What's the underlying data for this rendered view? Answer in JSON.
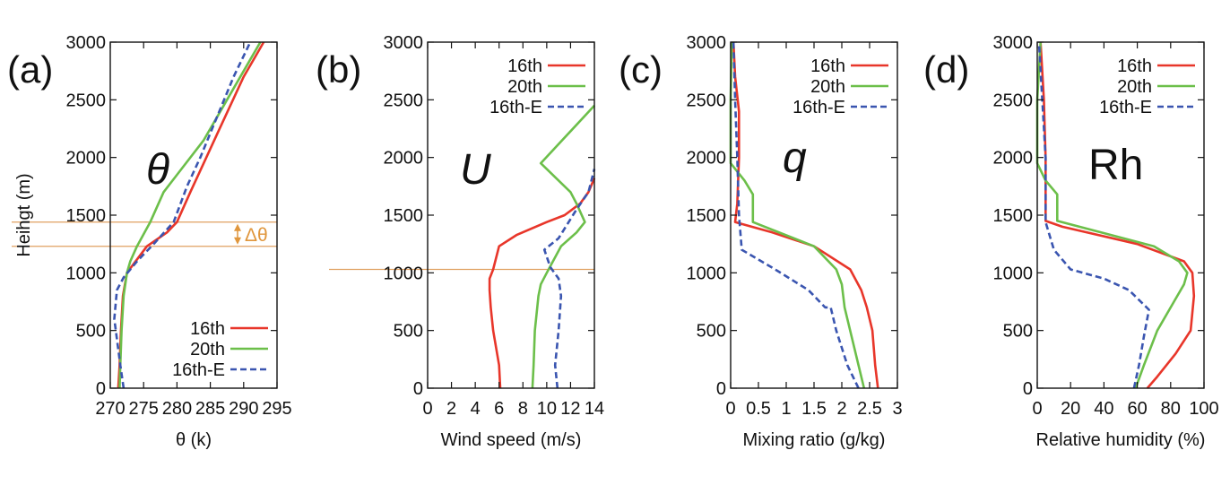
{
  "chart_data": [
    {
      "type": "line",
      "panel_label": "(a)",
      "symbol": "θ",
      "symbol_style": "italic",
      "xlabel": "θ (k)",
      "ylabel": "Heihgt (m)",
      "xlim": [
        270,
        295
      ],
      "ylim": [
        0,
        3000
      ],
      "xticks": [
        "270",
        "275",
        "280",
        "285",
        "290",
        "295"
      ],
      "yticks": [
        "0",
        "500",
        "1000",
        "1500",
        "2000",
        "2500",
        "3000"
      ],
      "legend_position": "bottom-right",
      "hlines": [
        1440,
        1230
      ],
      "annotation": "Δθ",
      "series": [
        {
          "name": "16th",
          "color": "#e8362a",
          "dash": "solid",
          "x": [
            271.2,
            271.4,
            271.6,
            271.9,
            272.5,
            275.5,
            278.5,
            280.0,
            282.0,
            284.0,
            286.0,
            288.0,
            290.0,
            292.0,
            293.0
          ],
          "y": [
            0,
            200,
            500,
            800,
            1000,
            1230,
            1350,
            1440,
            1700,
            1950,
            2200,
            2450,
            2700,
            2900,
            3000
          ]
        },
        {
          "name": "20th",
          "color": "#6cbf4a",
          "dash": "solid",
          "x": [
            271.4,
            271.5,
            271.7,
            272.0,
            272.5,
            273.0,
            274.0,
            276.0,
            278.0,
            280.0,
            284.0,
            287.0,
            290.0,
            292.5
          ],
          "y": [
            0,
            200,
            500,
            800,
            1000,
            1100,
            1230,
            1440,
            1700,
            1850,
            2150,
            2450,
            2750,
            3000
          ]
        },
        {
          "name": "16th-E",
          "color": "#3a55b0",
          "dash": "dashed",
          "x": [
            272.0,
            271.5,
            270.6,
            271.0,
            272.0,
            274.0,
            276.5,
            279.5,
            281.5,
            283.5,
            286.0,
            288.5,
            291.0
          ],
          "y": [
            0,
            200,
            600,
            850,
            960,
            1100,
            1250,
            1440,
            1750,
            2000,
            2350,
            2700,
            3000
          ]
        }
      ]
    },
    {
      "type": "line",
      "panel_label": "(b)",
      "symbol": "U",
      "symbol_style": "italic",
      "xlabel": "Wind speed (m/s)",
      "ylabel": "",
      "xlim": [
        0,
        14
      ],
      "ylim": [
        0,
        3000
      ],
      "xticks": [
        "0",
        "2",
        "4",
        "6",
        "8",
        "10",
        "12",
        "14"
      ],
      "yticks": [
        "0",
        "500",
        "1000",
        "1500",
        "2000",
        "2500",
        "3000"
      ],
      "legend_position": "top-right",
      "hlines": [
        1030
      ],
      "annotation": "",
      "series": [
        {
          "name": "16th",
          "color": "#e8362a",
          "dash": "solid",
          "x": [
            6.1,
            6.0,
            5.5,
            5.3,
            5.2,
            5.2,
            5.5,
            6.0,
            7.5,
            10.0,
            11.5,
            12.8,
            13.5,
            14.0
          ],
          "y": [
            0,
            200,
            500,
            700,
            850,
            950,
            1030,
            1230,
            1330,
            1440,
            1500,
            1600,
            1700,
            1820
          ]
        },
        {
          "name": "20th",
          "color": "#6cbf4a",
          "dash": "solid",
          "x": [
            8.8,
            8.9,
            9.0,
            9.3,
            9.5,
            10.0,
            11.2,
            12.5,
            13.2,
            12.5,
            12.0,
            9.5,
            14.0
          ],
          "y": [
            0,
            200,
            500,
            800,
            900,
            1000,
            1230,
            1350,
            1440,
            1600,
            1700,
            1950,
            2450
          ]
        },
        {
          "name": "16th-E",
          "color": "#3a55b0",
          "dash": "dashed",
          "x": [
            10.9,
            10.7,
            11.0,
            11.2,
            11.0,
            10.3,
            9.8,
            11.0,
            12.5,
            13.5,
            14.0
          ],
          "y": [
            0,
            200,
            500,
            800,
            950,
            1050,
            1200,
            1300,
            1550,
            1700,
            1900
          ]
        }
      ]
    },
    {
      "type": "line",
      "panel_label": "(c)",
      "symbol": "q",
      "symbol_style": "italic",
      "xlabel": "Mixing ratio (g/kg)",
      "ylabel": "",
      "xlim": [
        0,
        3
      ],
      "ylim": [
        0,
        3000
      ],
      "xticks": [
        "0",
        "0.5",
        "1",
        "1.5",
        "2",
        "2.5",
        "3"
      ],
      "yticks": [
        "0",
        "500",
        "1000",
        "1500",
        "2000",
        "2500",
        "3000"
      ],
      "legend_position": "top-right",
      "hlines": [],
      "annotation": "",
      "series": [
        {
          "name": "16th",
          "color": "#e8362a",
          "dash": "solid",
          "x": [
            2.65,
            2.6,
            2.55,
            2.45,
            2.35,
            2.15,
            1.5,
            0.75,
            0.08,
            0.12,
            0.15,
            0.15,
            0.08,
            0.05
          ],
          "y": [
            0,
            200,
            500,
            700,
            850,
            1030,
            1230,
            1350,
            1440,
            1600,
            2000,
            2400,
            2700,
            3000
          ]
        },
        {
          "name": "20th",
          "color": "#6cbf4a",
          "dash": "solid",
          "x": [
            2.4,
            2.3,
            2.15,
            2.05,
            2.0,
            1.9,
            1.5,
            0.4,
            0.4,
            0.25,
            0.0,
            0.0,
            0.02
          ],
          "y": [
            0,
            200,
            500,
            700,
            900,
            1030,
            1230,
            1440,
            1680,
            1800,
            1950,
            2500,
            3000
          ]
        },
        {
          "name": "16th-E",
          "color": "#3a55b0",
          "dash": "dashed",
          "x": [
            2.3,
            2.1,
            1.9,
            1.8,
            1.7,
            1.4,
            0.8,
            0.2,
            0.15,
            0.12,
            0.08,
            0.05
          ],
          "y": [
            0,
            200,
            500,
            700,
            700,
            850,
            1030,
            1200,
            1500,
            2000,
            2500,
            3000
          ]
        }
      ]
    },
    {
      "type": "line",
      "panel_label": "(d)",
      "symbol": "Rh",
      "symbol_style": "normal",
      "xlabel": "Relative humidity (%)",
      "ylabel": "",
      "xlim": [
        0,
        100
      ],
      "ylim": [
        0,
        3000
      ],
      "xticks": [
        "0",
        "20",
        "40",
        "60",
        "80",
        "100"
      ],
      "yticks": [
        "0",
        "500",
        "1000",
        "1500",
        "2000",
        "2500",
        "3000"
      ],
      "legend_position": "top-right",
      "hlines": [],
      "annotation": "",
      "series": [
        {
          "name": "16th",
          "color": "#e8362a",
          "dash": "solid",
          "x": [
            66,
            72,
            83,
            92,
            94,
            93,
            88,
            60,
            15,
            5,
            5,
            4,
            2
          ],
          "y": [
            0,
            100,
            300,
            500,
            800,
            1000,
            1100,
            1250,
            1400,
            1450,
            2000,
            2500,
            3000
          ]
        },
        {
          "name": "20th",
          "color": "#6cbf4a",
          "dash": "solid",
          "x": [
            59,
            64,
            72,
            82,
            88,
            90,
            85,
            70,
            12,
            12,
            5,
            0,
            0,
            2
          ],
          "y": [
            0,
            200,
            500,
            750,
            900,
            1000,
            1100,
            1230,
            1450,
            1680,
            1800,
            1950,
            2500,
            3000
          ]
        },
        {
          "name": "16th-E",
          "color": "#3a55b0",
          "dash": "dashed",
          "x": [
            58,
            61,
            64,
            67,
            55,
            40,
            20,
            10,
            5,
            5,
            3,
            1
          ],
          "y": [
            0,
            200,
            450,
            680,
            850,
            950,
            1030,
            1200,
            1440,
            2000,
            2500,
            3000
          ]
        }
      ]
    }
  ]
}
